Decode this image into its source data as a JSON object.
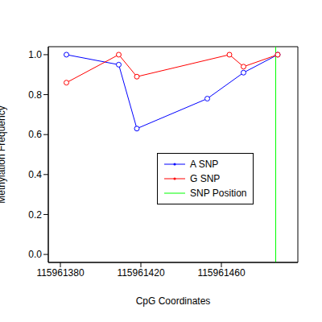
{
  "chart_data": {
    "type": "line",
    "x_label": "CpG Coordinates",
    "y_label": "Methylation Frequency",
    "xlim": [
      115961374,
      115961498
    ],
    "xticks": [
      115961380,
      115961420,
      115961460
    ],
    "ylim": [
      -0.04,
      1.04
    ],
    "yticks": [
      {
        "value": 0,
        "label": "0.0"
      },
      0.2,
      0.4,
      0.6,
      0.8,
      {
        "value": 1,
        "label": "1.0"
      }
    ],
    "legend": "right",
    "series": [
      {
        "name": "A SNP",
        "color": "#0000ff",
        "marker": "circle",
        "x": [
          115961383,
          115961409,
          115961418,
          115961453,
          115961471,
          115961488
        ],
        "values": [
          1.0,
          0.95,
          0.63,
          0.78,
          0.91,
          1.0
        ]
      },
      {
        "name": "G SNP",
        "color": "#ff0000",
        "marker": "circle",
        "x": [
          115961383,
          115961409,
          115961418,
          115961464,
          115961471,
          115961488
        ],
        "values": [
          0.86,
          1.0,
          0.89,
          1.0,
          0.94,
          1.0
        ]
      }
    ],
    "snp_position": {
      "name": "SNP Position",
      "color": "#00ff00",
      "x": 115961487
    }
  }
}
